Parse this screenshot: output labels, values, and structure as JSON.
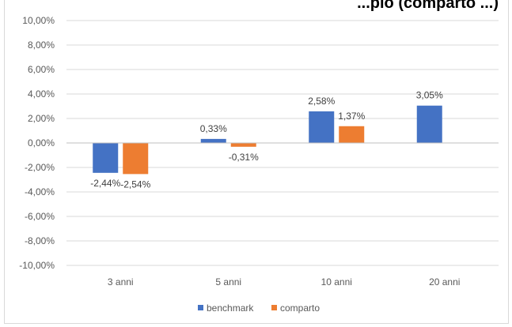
{
  "chart_data": {
    "type": "bar",
    "title": "...pio (comparto ...)",
    "categories": [
      "3 anni",
      "5 anni",
      "10 anni",
      "20 anni"
    ],
    "series": [
      {
        "name": "benchmark",
        "color": "#4472c4",
        "values": [
          -2.44,
          0.33,
          2.58,
          3.05
        ],
        "labels": [
          "-2,44%",
          "0,33%",
          "2,58%",
          "3,05%"
        ]
      },
      {
        "name": "comparto",
        "color": "#ed7d31",
        "values": [
          -2.54,
          -0.31,
          1.37,
          null
        ],
        "labels": [
          "-2,54%",
          "-0,31%",
          "1,37%",
          ""
        ]
      }
    ],
    "ylim": [
      -10,
      10
    ],
    "yticks": [
      10,
      8,
      6,
      4,
      2,
      0,
      -2,
      -4,
      -6,
      -8,
      -10
    ],
    "ytick_labels": [
      "10,00%",
      "8,00%",
      "6,00%",
      "4,00%",
      "2,00%",
      "0,00%",
      "-2,00%",
      "-4,00%",
      "-6,00%",
      "-8,00%",
      "-10,00%"
    ],
    "grid": true,
    "legend_position": "bottom",
    "xlabel": "",
    "ylabel": ""
  }
}
